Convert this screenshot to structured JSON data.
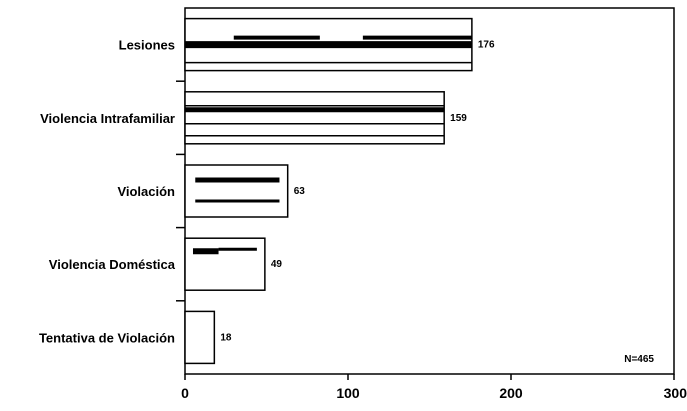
{
  "chart_data": {
    "type": "bar",
    "orientation": "horizontal",
    "title": "",
    "xlabel": "",
    "ylabel": "",
    "categories": [
      "Lesiones",
      "Violencia Intrafamiliar",
      "Violación",
      "Violencia Doméstica",
      "Tentativa de Violación"
    ],
    "values": [
      176,
      159,
      63,
      49,
      18
    ],
    "data_labels": [
      "176",
      "159",
      "63",
      "49",
      "18"
    ],
    "xlim": [
      0,
      300
    ],
    "x_ticks": [
      "0",
      "100",
      "200",
      "300"
    ],
    "annotation": "N=465",
    "grid": false,
    "legend": "none",
    "colors": {
      "bar_fill": "#ffffff",
      "bar_stroke": "#000000",
      "inner_stroke": "#000000"
    }
  }
}
